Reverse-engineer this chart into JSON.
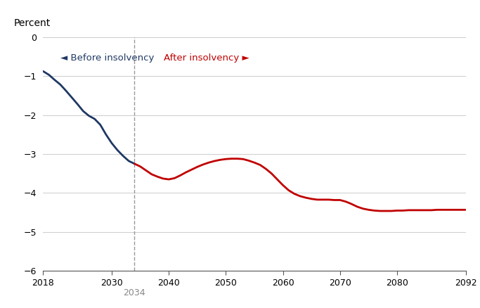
{
  "blue_x": [
    2018,
    2019,
    2020,
    2021,
    2022,
    2023,
    2024,
    2025,
    2026,
    2027,
    2028,
    2029,
    2030,
    2031,
    2032,
    2033,
    2034
  ],
  "blue_y": [
    -0.88,
    -0.97,
    -1.1,
    -1.22,
    -1.38,
    -1.55,
    -1.72,
    -1.9,
    -2.02,
    -2.1,
    -2.25,
    -2.5,
    -2.72,
    -2.9,
    -3.05,
    -3.18,
    -3.25
  ],
  "red_x": [
    2034,
    2035,
    2036,
    2037,
    2038,
    2039,
    2040,
    2041,
    2042,
    2043,
    2044,
    2045,
    2046,
    2047,
    2048,
    2049,
    2050,
    2051,
    2052,
    2053,
    2054,
    2055,
    2056,
    2057,
    2058,
    2059,
    2060,
    2061,
    2062,
    2063,
    2064,
    2065,
    2066,
    2067,
    2068,
    2069,
    2070,
    2071,
    2072,
    2073,
    2074,
    2075,
    2076,
    2077,
    2078,
    2079,
    2080,
    2081,
    2082,
    2083,
    2084,
    2085,
    2086,
    2087,
    2088,
    2089,
    2090,
    2091,
    2092
  ],
  "red_y": [
    -3.25,
    -3.32,
    -3.42,
    -3.52,
    -3.58,
    -3.63,
    -3.65,
    -3.62,
    -3.55,
    -3.47,
    -3.4,
    -3.33,
    -3.27,
    -3.22,
    -3.18,
    -3.15,
    -3.13,
    -3.12,
    -3.12,
    -3.13,
    -3.17,
    -3.22,
    -3.28,
    -3.38,
    -3.5,
    -3.65,
    -3.8,
    -3.93,
    -4.02,
    -4.08,
    -4.12,
    -4.15,
    -4.17,
    -4.17,
    -4.17,
    -4.18,
    -4.18,
    -4.22,
    -4.28,
    -4.35,
    -4.4,
    -4.43,
    -4.45,
    -4.46,
    -4.46,
    -4.46,
    -4.45,
    -4.45,
    -4.44,
    -4.44,
    -4.44,
    -4.44,
    -4.44,
    -4.43,
    -4.43,
    -4.43,
    -4.43,
    -4.43,
    -4.43
  ],
  "vline_x": 2034,
  "ylim": [
    -6,
    0
  ],
  "xlim": [
    2018,
    2092
  ],
  "yticks": [
    0,
    -1,
    -2,
    -3,
    -4,
    -5,
    -6
  ],
  "xticks": [
    2018,
    2030,
    2040,
    2050,
    2060,
    2070,
    2080,
    2092
  ],
  "xtick_labels": [
    "2018",
    "2030",
    "2040",
    "2050",
    "2060",
    "2070",
    "2080",
    "2092"
  ],
  "percent_label": "Percent",
  "blue_color": "#1f3864",
  "red_color": "#c00000",
  "vline_color": "#999999",
  "grid_color": "#cccccc",
  "before_label": "◄ Before insolvency",
  "after_label": "After insolvency ►",
  "vline_label": "2034",
  "background_color": "#ffffff",
  "line_width": 2.0
}
